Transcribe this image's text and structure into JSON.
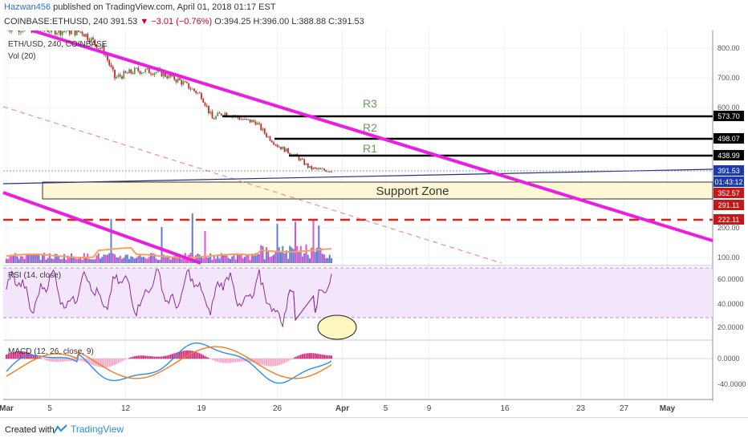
{
  "header": {
    "author": "Hazwan456",
    "published": "published on TradingView.com, April 01, 2018 01:17 EST",
    "ticker_line": "COINBASE:ETHUSD, 240",
    "last": "391.53",
    "change": "−3.01 (−0.76%)",
    "ohlc": "O:394.25 H:396.00 L:388.88 C:391.53"
  },
  "footer": {
    "created_with": "Created with",
    "brand": "TradingView"
  },
  "chart_data": {
    "type": "candlestick",
    "symbol_label": "ETH/USD, 240, COINBASE",
    "volume_label": "Vol (20)",
    "price_axis_ticks": [
      "800.00",
      "700.00",
      "600.00",
      "200.00",
      "100.00"
    ],
    "x_ticks": [
      "Mar",
      "5",
      "12",
      "19",
      "26",
      "Apr",
      "5",
      "9",
      "16",
      "23",
      "27",
      "May"
    ],
    "price_path": [
      [
        0,
        870
      ],
      [
        7,
        855
      ],
      [
        9,
        790
      ],
      [
        10,
        700
      ],
      [
        12,
        725
      ],
      [
        14,
        720
      ],
      [
        16,
        690
      ],
      [
        18,
        640
      ],
      [
        19,
        565
      ],
      [
        20,
        585
      ],
      [
        21,
        575
      ],
      [
        22,
        560
      ],
      [
        23,
        555
      ],
      [
        24,
        510
      ],
      [
        25,
        475
      ],
      [
        27,
        430
      ],
      [
        28,
        400
      ],
      [
        29,
        395
      ],
      [
        30,
        392
      ]
    ],
    "horizontal_levels": [
      {
        "name": "R3",
        "value": 573.7
      },
      {
        "name": "R2",
        "value": 498.07
      },
      {
        "name": "R1",
        "value": 438.99
      }
    ],
    "price_labels": [
      "573.70",
      "498.07",
      "438.99",
      "391.53",
      "01:43:12",
      "352.57",
      "291.11",
      "222.11"
    ],
    "support_zone": {
      "label": "Support Zone",
      "low": 291.11,
      "high": 352.57
    },
    "dashed_red_level": 222.11,
    "level_labels": {
      "r3": "R3",
      "r2": "R2",
      "r1": "R1"
    },
    "rsi": {
      "label": "RSI (14, close)",
      "ticks": [
        "60.0000",
        "40.0000",
        "20.0000"
      ],
      "upper": 70,
      "lower": 30
    },
    "macd": {
      "label": "MACD (12, 26, close, 9)",
      "ticks": [
        "0.0000",
        "-40.0000"
      ]
    },
    "colors": {
      "trendline": "#e91ee0",
      "support_fill": "#fdf7d5",
      "dashed_red": "#e8211c",
      "price_tag_blue": "#1c3aa9",
      "rsi_fill": "#f3e6fb"
    }
  }
}
